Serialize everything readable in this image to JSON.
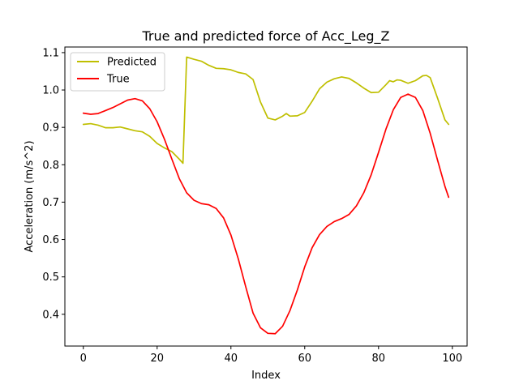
{
  "chart_data": {
    "type": "line",
    "title": "True and predicted force of Acc_Leg_Z",
    "xlabel": "Index",
    "ylabel": "Acceleration (m/s^2)",
    "xlim": [
      -5,
      104
    ],
    "ylim": [
      0.315,
      1.115
    ],
    "x_ticks": [
      0,
      20,
      40,
      60,
      80,
      100
    ],
    "y_ticks": [
      0.4,
      0.5,
      0.6,
      0.7,
      0.8,
      0.9,
      1.0,
      1.1
    ],
    "grid": false,
    "legend_position": "top-left",
    "series": [
      {
        "name": "Predicted",
        "color": "#bfbf00",
        "x": [
          0,
          2,
          4,
          6,
          8,
          10,
          12,
          14,
          16,
          18,
          20,
          22,
          24,
          26,
          27,
          28,
          30,
          32,
          34,
          36,
          38,
          40,
          42,
          44,
          46,
          48,
          50,
          52,
          54,
          55,
          56,
          58,
          60,
          62,
          64,
          66,
          68,
          70,
          72,
          74,
          76,
          78,
          80,
          82,
          83,
          84,
          85,
          86,
          88,
          90,
          92,
          93,
          94,
          96,
          98,
          99
        ],
        "values": [
          0.908,
          0.91,
          0.906,
          0.899,
          0.899,
          0.901,
          0.896,
          0.891,
          0.888,
          0.876,
          0.857,
          0.845,
          0.835,
          0.815,
          0.804,
          1.088,
          1.082,
          1.077,
          1.066,
          1.058,
          1.057,
          1.054,
          1.047,
          1.043,
          1.028,
          0.968,
          0.925,
          0.92,
          0.93,
          0.937,
          0.93,
          0.931,
          0.94,
          0.97,
          1.003,
          1.021,
          1.03,
          1.035,
          1.031,
          1.019,
          1.005,
          0.993,
          0.994,
          1.014,
          1.025,
          1.022,
          1.027,
          1.026,
          1.018,
          1.025,
          1.038,
          1.039,
          1.033,
          0.978,
          0.92,
          0.908
        ]
      },
      {
        "name": "True",
        "color": "#ff0000",
        "x": [
          0,
          2,
          4,
          6,
          8,
          10,
          12,
          14,
          16,
          18,
          20,
          22,
          24,
          26,
          28,
          30,
          32,
          34,
          36,
          38,
          40,
          42,
          44,
          46,
          48,
          50,
          52,
          54,
          56,
          58,
          60,
          62,
          64,
          66,
          68,
          70,
          72,
          74,
          76,
          78,
          80,
          82,
          84,
          86,
          88,
          90,
          92,
          94,
          96,
          98,
          99
        ],
        "values": [
          0.938,
          0.935,
          0.937,
          0.945,
          0.953,
          0.963,
          0.973,
          0.977,
          0.971,
          0.95,
          0.915,
          0.868,
          0.815,
          0.763,
          0.725,
          0.705,
          0.696,
          0.693,
          0.683,
          0.658,
          0.612,
          0.548,
          0.474,
          0.403,
          0.364,
          0.349,
          0.348,
          0.368,
          0.41,
          0.465,
          0.527,
          0.578,
          0.613,
          0.635,
          0.648,
          0.656,
          0.667,
          0.69,
          0.725,
          0.773,
          0.833,
          0.895,
          0.947,
          0.98,
          0.989,
          0.98,
          0.945,
          0.884,
          0.812,
          0.742,
          0.713
        ]
      }
    ]
  }
}
